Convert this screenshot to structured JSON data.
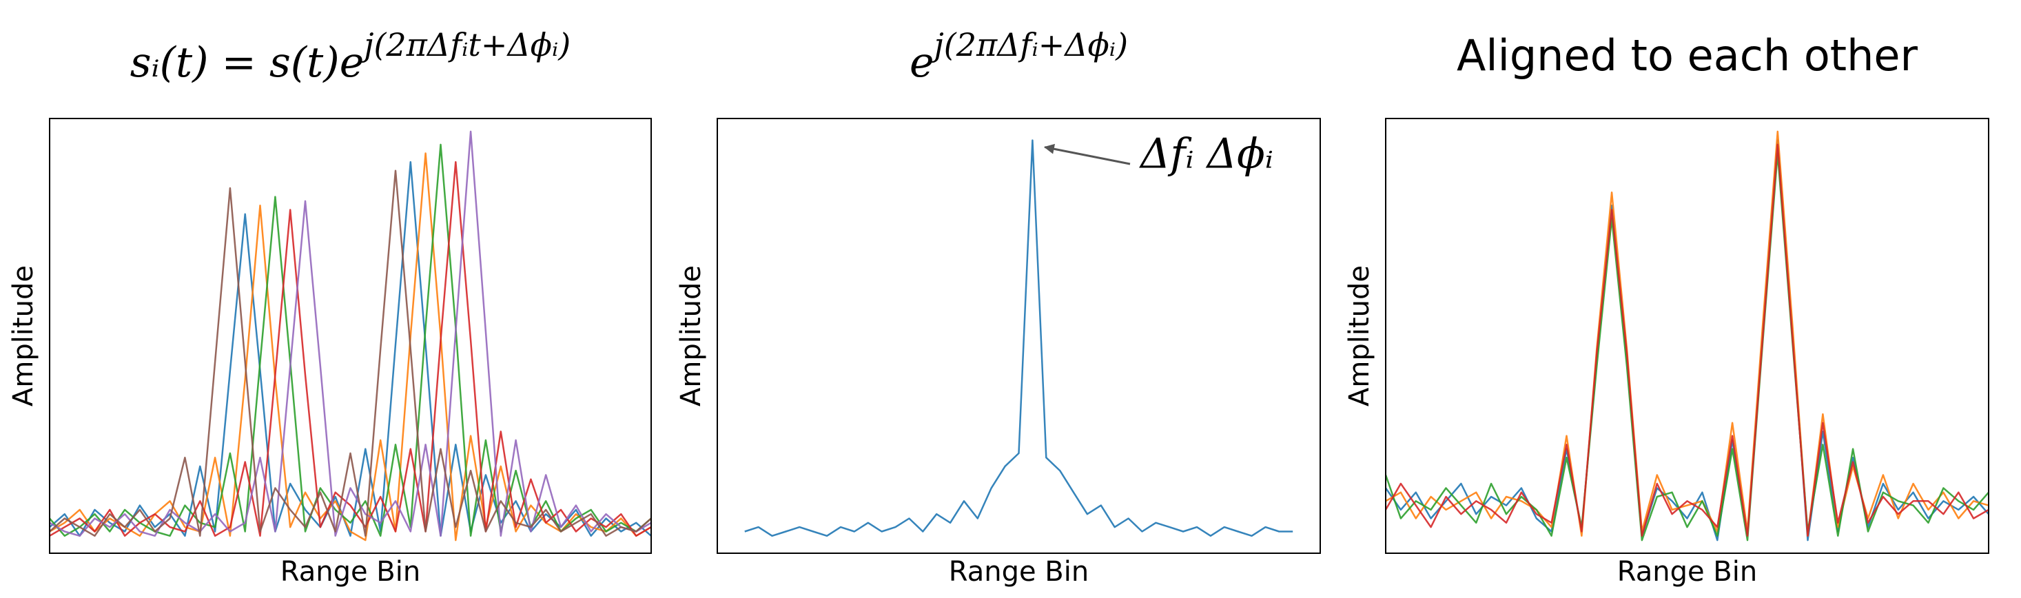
{
  "chart_data": [
    {
      "type": "line",
      "title": "sᵢ(t) = s(t)e",
      "title_superscript": "j(2πΔfᵢt+Δϕᵢ)",
      "x_label": "Range Bin",
      "y_label": "Amplitude",
      "xlim": [
        0,
        100
      ],
      "ylim": [
        0,
        1
      ],
      "x": [
        0,
        2.5,
        5,
        7.5,
        10,
        12.5,
        15,
        17.5,
        20,
        22.5,
        25,
        27.5,
        30,
        32.5,
        35,
        37.5,
        40,
        42.5,
        45,
        47.5,
        50,
        52.5,
        55,
        57.5,
        60,
        62.5,
        65,
        67.5,
        70,
        72.5,
        75,
        77.5,
        80,
        82.5,
        85,
        87.5,
        90,
        92.5,
        95,
        97.5,
        100
      ],
      "series": [
        {
          "color": "#1f77b4",
          "values": [
            0.06,
            0.09,
            0.04,
            0.1,
            0.07,
            0.05,
            0.11,
            0.06,
            0.09,
            0.04,
            0.2,
            0.05,
            0.42,
            0.78,
            0.42,
            0.05,
            0.16,
            0.1,
            0.06,
            0.13,
            0.04,
            0.24,
            0.05,
            0.48,
            0.9,
            0.48,
            0.04,
            0.25,
            0.05,
            0.18,
            0.07,
            0.12,
            0.05,
            0.09,
            0.06,
            0.1,
            0.04,
            0.08,
            0.05,
            0.07,
            0.04
          ]
        },
        {
          "color": "#ff7f0e",
          "values": [
            0.05,
            0.07,
            0.1,
            0.05,
            0.08,
            0.06,
            0.04,
            0.09,
            0.12,
            0.06,
            0.05,
            0.22,
            0.04,
            0.4,
            0.8,
            0.4,
            0.06,
            0.14,
            0.08,
            0.12,
            0.05,
            0.03,
            0.26,
            0.05,
            0.5,
            0.92,
            0.5,
            0.03,
            0.27,
            0.06,
            0.2,
            0.05,
            0.11,
            0.07,
            0.05,
            0.09,
            0.06,
            0.05,
            0.08,
            0.04,
            0.06
          ]
        },
        {
          "color": "#2ca02c",
          "values": [
            0.08,
            0.04,
            0.06,
            0.09,
            0.05,
            0.1,
            0.07,
            0.05,
            0.04,
            0.11,
            0.07,
            0.06,
            0.23,
            0.05,
            0.44,
            0.82,
            0.44,
            0.05,
            0.15,
            0.1,
            0.07,
            0.12,
            0.04,
            0.25,
            0.06,
            0.52,
            0.94,
            0.52,
            0.04,
            0.26,
            0.05,
            0.19,
            0.06,
            0.12,
            0.05,
            0.08,
            0.1,
            0.05,
            0.07,
            0.05,
            0.08
          ]
        },
        {
          "color": "#d62728",
          "values": [
            0.04,
            0.06,
            0.08,
            0.05,
            0.1,
            0.04,
            0.07,
            0.09,
            0.06,
            0.05,
            0.12,
            0.04,
            0.06,
            0.21,
            0.04,
            0.41,
            0.79,
            0.41,
            0.06,
            0.14,
            0.11,
            0.06,
            0.13,
            0.05,
            0.24,
            0.05,
            0.49,
            0.9,
            0.49,
            0.05,
            0.28,
            0.06,
            0.17,
            0.07,
            0.1,
            0.05,
            0.08,
            0.06,
            0.09,
            0.04,
            0.06
          ]
        },
        {
          "color": "#9467bd",
          "values": [
            0.07,
            0.05,
            0.04,
            0.08,
            0.06,
            0.09,
            0.05,
            0.04,
            0.1,
            0.07,
            0.05,
            0.09,
            0.05,
            0.07,
            0.22,
            0.05,
            0.43,
            0.81,
            0.43,
            0.04,
            0.15,
            0.09,
            0.07,
            0.12,
            0.05,
            0.25,
            0.04,
            0.51,
            0.97,
            0.51,
            0.04,
            0.26,
            0.05,
            0.18,
            0.06,
            0.11,
            0.05,
            0.09,
            0.06,
            0.05,
            0.07
          ]
        },
        {
          "color": "#8c564b",
          "values": [
            0.05,
            0.08,
            0.06,
            0.04,
            0.09,
            0.06,
            0.1,
            0.05,
            0.08,
            0.22,
            0.04,
            0.44,
            0.84,
            0.44,
            0.05,
            0.15,
            0.1,
            0.06,
            0.14,
            0.05,
            0.23,
            0.04,
            0.47,
            0.88,
            0.47,
            0.05,
            0.24,
            0.06,
            0.19,
            0.05,
            0.12,
            0.07,
            0.06,
            0.1,
            0.05,
            0.07,
            0.09,
            0.04,
            0.06,
            0.05,
            0.08
          ]
        }
      ]
    },
    {
      "type": "line",
      "title": "e",
      "title_superscript": "j(2πΔfᵢ+Δϕᵢ)",
      "x_label": "Range Bin",
      "y_label": "Amplitude",
      "annotation": "Δfᵢ  Δϕᵢ",
      "xlim": [
        -5,
        105
      ],
      "ylim": [
        0,
        1
      ],
      "x": [
        0,
        2.5,
        5,
        7.5,
        10,
        12.5,
        15,
        17.5,
        20,
        22.5,
        25,
        27.5,
        30,
        32.5,
        35,
        37.5,
        40,
        42.5,
        45,
        47.5,
        50,
        52.5,
        55,
        57.5,
        60,
        62.5,
        65,
        67.5,
        70,
        72.5,
        75,
        77.5,
        80,
        82.5,
        85,
        87.5,
        90,
        92.5,
        95,
        97.5,
        100
      ],
      "series": [
        {
          "color": "#1f77b4",
          "values": [
            0.05,
            0.06,
            0.04,
            0.05,
            0.06,
            0.05,
            0.04,
            0.06,
            0.05,
            0.07,
            0.05,
            0.06,
            0.08,
            0.05,
            0.09,
            0.07,
            0.12,
            0.08,
            0.15,
            0.2,
            0.23,
            0.95,
            0.22,
            0.19,
            0.14,
            0.09,
            0.11,
            0.06,
            0.08,
            0.05,
            0.07,
            0.06,
            0.05,
            0.06,
            0.04,
            0.06,
            0.05,
            0.04,
            0.06,
            0.05,
            0.05
          ]
        }
      ]
    },
    {
      "type": "line",
      "title": "Aligned to each other",
      "x_label": "Range Bin",
      "y_label": "Amplitude",
      "xlim": [
        0,
        100
      ],
      "ylim": [
        0,
        1
      ],
      "x": [
        0,
        2.5,
        5,
        7.5,
        10,
        12.5,
        15,
        17.5,
        20,
        22.5,
        25,
        27.5,
        30,
        32.5,
        35,
        37.5,
        40,
        42.5,
        45,
        47.5,
        50,
        52.5,
        55,
        57.5,
        60,
        62.5,
        65,
        67.5,
        70,
        72.5,
        75,
        77.5,
        80,
        82.5,
        85,
        87.5,
        90,
        92.5,
        95,
        97.5,
        100
      ],
      "series": [
        {
          "color": "#1f77b4",
          "values": [
            0.15,
            0.1,
            0.14,
            0.08,
            0.12,
            0.16,
            0.09,
            0.13,
            0.11,
            0.15,
            0.08,
            0.05,
            0.24,
            0.05,
            0.45,
            0.8,
            0.45,
            0.04,
            0.15,
            0.12,
            0.08,
            0.14,
            0.03,
            0.26,
            0.04,
            0.5,
            0.95,
            0.5,
            0.03,
            0.28,
            0.05,
            0.22,
            0.06,
            0.16,
            0.1,
            0.14,
            0.08,
            0.12,
            0.1,
            0.13,
            0.09
          ]
        },
        {
          "color": "#ff7f0e",
          "values": [
            0.12,
            0.14,
            0.08,
            0.13,
            0.1,
            0.12,
            0.14,
            0.08,
            0.13,
            0.12,
            0.1,
            0.06,
            0.27,
            0.04,
            0.47,
            0.83,
            0.47,
            0.05,
            0.18,
            0.1,
            0.11,
            0.12,
            0.05,
            0.3,
            0.05,
            0.52,
            0.97,
            0.52,
            0.04,
            0.32,
            0.06,
            0.2,
            0.08,
            0.18,
            0.08,
            0.16,
            0.1,
            0.14,
            0.08,
            0.12,
            0.11
          ]
        },
        {
          "color": "#2ca02c",
          "values": [
            0.18,
            0.08,
            0.12,
            0.1,
            0.15,
            0.11,
            0.07,
            0.16,
            0.09,
            0.13,
            0.1,
            0.04,
            0.22,
            0.06,
            0.43,
            0.77,
            0.43,
            0.03,
            0.13,
            0.14,
            0.06,
            0.12,
            0.04,
            0.24,
            0.03,
            0.48,
            0.92,
            0.48,
            0.05,
            0.25,
            0.04,
            0.24,
            0.05,
            0.14,
            0.12,
            0.11,
            0.07,
            0.15,
            0.12,
            0.1,
            0.14
          ]
        },
        {
          "color": "#d62728",
          "values": [
            0.1,
            0.16,
            0.11,
            0.06,
            0.13,
            0.09,
            0.12,
            0.1,
            0.07,
            0.14,
            0.09,
            0.07,
            0.25,
            0.05,
            0.46,
            0.79,
            0.46,
            0.04,
            0.16,
            0.09,
            0.12,
            0.1,
            0.06,
            0.27,
            0.04,
            0.49,
            0.94,
            0.49,
            0.04,
            0.3,
            0.07,
            0.21,
            0.07,
            0.13,
            0.09,
            0.12,
            0.12,
            0.09,
            0.14,
            0.08,
            0.1
          ]
        }
      ]
    }
  ]
}
